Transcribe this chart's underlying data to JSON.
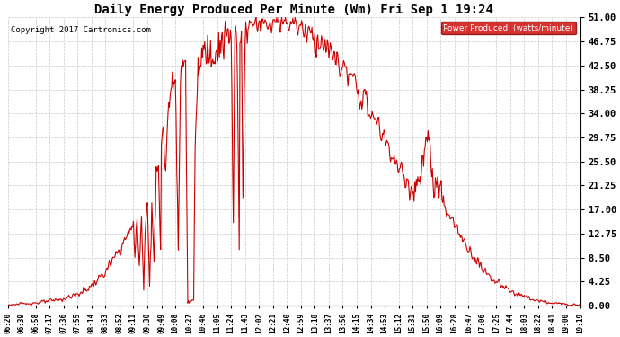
{
  "title": "Daily Energy Produced Per Minute (Wm) Fri Sep 1 19:24",
  "copyright": "Copyright 2017 Cartronics.com",
  "legend_label": "Power Produced  (watts/minute)",
  "legend_bg": "#cc0000",
  "legend_fg": "#ffffff",
  "line_color": "#cc0000",
  "bg_color": "#ffffff",
  "grid_color": "#bbbbbb",
  "yticks": [
    0.0,
    4.25,
    8.5,
    12.75,
    17.0,
    21.25,
    25.5,
    29.75,
    34.0,
    38.25,
    42.5,
    46.75,
    51.0
  ],
  "ylim": [
    0.0,
    51.0
  ],
  "xtick_labels": [
    "06:20",
    "06:39",
    "06:58",
    "07:17",
    "07:36",
    "07:55",
    "08:14",
    "08:33",
    "08:52",
    "09:11",
    "09:30",
    "09:49",
    "10:08",
    "10:27",
    "10:46",
    "11:05",
    "11:24",
    "11:43",
    "12:02",
    "12:21",
    "12:40",
    "12:59",
    "13:18",
    "13:37",
    "13:56",
    "14:15",
    "14:34",
    "14:53",
    "15:12",
    "15:31",
    "15:50",
    "16:09",
    "16:28",
    "16:47",
    "17:06",
    "17:25",
    "17:44",
    "18:03",
    "18:22",
    "18:41",
    "19:00",
    "19:19"
  ]
}
